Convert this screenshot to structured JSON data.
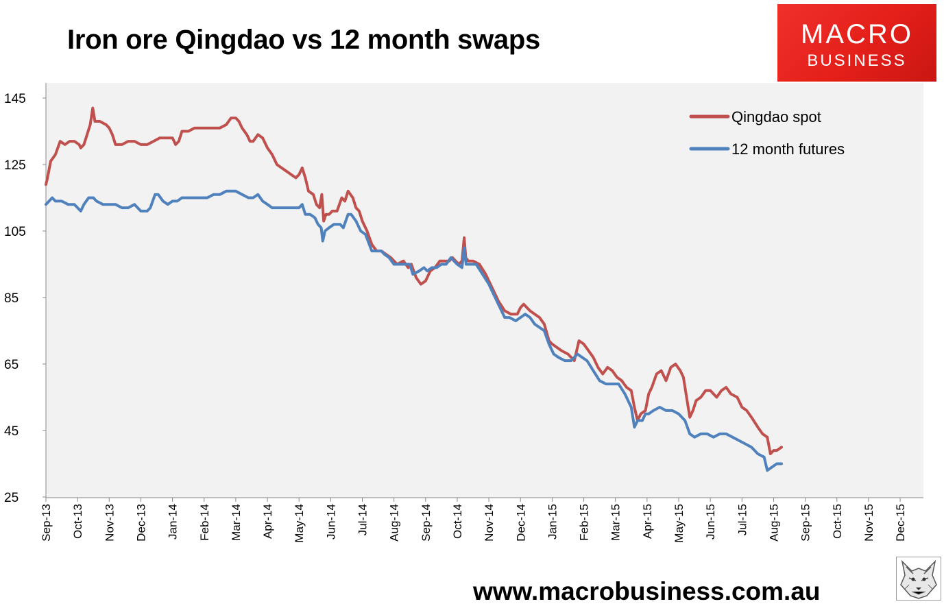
{
  "title": "Iron ore Qingdao vs 12 month swaps",
  "logo": {
    "line1": "MACRO",
    "line2": "BUSINESS",
    "color": "#e41f1a"
  },
  "website": "www.macrobusiness.com.au",
  "colors": {
    "plot_bg": "#f2f2f2",
    "spot": "#c0504d",
    "futures": "#4f81bd"
  },
  "chart_data": {
    "type": "line",
    "title": "Iron ore Qingdao vs 12 month swaps",
    "xlabel": "",
    "ylabel": "",
    "ylim": [
      25,
      150
    ],
    "yticks": [
      25,
      45,
      65,
      85,
      105,
      125,
      145
    ],
    "categories": [
      "Sep-13",
      "Oct-13",
      "Nov-13",
      "Dec-13",
      "Jan-14",
      "Feb-14",
      "Mar-14",
      "Apr-14",
      "May-14",
      "Jun-14",
      "Jul-14",
      "Aug-14",
      "Sep-14",
      "Oct-14",
      "Nov-14",
      "Dec-14",
      "Jan-15",
      "Feb-15",
      "Mar-15",
      "Apr-15",
      "May-15",
      "Jun-15",
      "Jul-15",
      "Aug-15",
      "Sep-15",
      "Oct-15",
      "Nov-15",
      "Dec-15"
    ],
    "grid": false,
    "legend": "top-right",
    "x_unit": "month index (0 = Sep-13)",
    "series": [
      {
        "name": "Qingdao spot",
        "color": "#c0504d",
        "points": [
          [
            0,
            119
          ],
          [
            0.05,
            121
          ],
          [
            0.15,
            126
          ],
          [
            0.3,
            128
          ],
          [
            0.45,
            132
          ],
          [
            0.6,
            131
          ],
          [
            0.75,
            132
          ],
          [
            0.9,
            132
          ],
          [
            1.05,
            131
          ],
          [
            1.1,
            130
          ],
          [
            1.2,
            131
          ],
          [
            1.3,
            134
          ],
          [
            1.4,
            137
          ],
          [
            1.48,
            142
          ],
          [
            1.55,
            138
          ],
          [
            1.7,
            138
          ],
          [
            1.9,
            137
          ],
          [
            2.0,
            136
          ],
          [
            2.1,
            134
          ],
          [
            2.2,
            131
          ],
          [
            2.4,
            131
          ],
          [
            2.6,
            132
          ],
          [
            2.8,
            132
          ],
          [
            3.0,
            131
          ],
          [
            3.2,
            131
          ],
          [
            3.4,
            132
          ],
          [
            3.6,
            133
          ],
          [
            3.8,
            133
          ],
          [
            4.0,
            133
          ],
          [
            4.1,
            131
          ],
          [
            4.2,
            132
          ],
          [
            4.3,
            135
          ],
          [
            4.5,
            135
          ],
          [
            4.7,
            136
          ],
          [
            4.9,
            136
          ],
          [
            5.1,
            136
          ],
          [
            5.3,
            136
          ],
          [
            5.5,
            136
          ],
          [
            5.7,
            137
          ],
          [
            5.85,
            139
          ],
          [
            6.0,
            139
          ],
          [
            6.1,
            138
          ],
          [
            6.2,
            136
          ],
          [
            6.35,
            134
          ],
          [
            6.45,
            132
          ],
          [
            6.55,
            132
          ],
          [
            6.7,
            134
          ],
          [
            6.85,
            133
          ],
          [
            7.0,
            130
          ],
          [
            7.15,
            128
          ],
          [
            7.3,
            125
          ],
          [
            7.45,
            124
          ],
          [
            7.6,
            123
          ],
          [
            7.75,
            122
          ],
          [
            7.9,
            121
          ],
          [
            8.0,
            122
          ],
          [
            8.1,
            124
          ],
          [
            8.2,
            121
          ],
          [
            8.3,
            117
          ],
          [
            8.45,
            116
          ],
          [
            8.55,
            113
          ],
          [
            8.65,
            112
          ],
          [
            8.72,
            116
          ],
          [
            8.78,
            108
          ],
          [
            8.85,
            110
          ],
          [
            8.95,
            110
          ],
          [
            9.05,
            111
          ],
          [
            9.2,
            111
          ],
          [
            9.35,
            115
          ],
          [
            9.45,
            114
          ],
          [
            9.55,
            117
          ],
          [
            9.7,
            115
          ],
          [
            9.8,
            112
          ],
          [
            9.9,
            111
          ],
          [
            10.0,
            108
          ],
          [
            10.15,
            105
          ],
          [
            10.3,
            101
          ],
          [
            10.45,
            99
          ],
          [
            10.6,
            99
          ],
          [
            10.75,
            98
          ],
          [
            10.9,
            97
          ],
          [
            11.1,
            95
          ],
          [
            11.3,
            96
          ],
          [
            11.45,
            94
          ],
          [
            11.55,
            95
          ],
          [
            11.7,
            91
          ],
          [
            11.85,
            89
          ],
          [
            12.0,
            90
          ],
          [
            12.15,
            93
          ],
          [
            12.3,
            94
          ],
          [
            12.45,
            96
          ],
          [
            12.6,
            96
          ],
          [
            12.75,
            96
          ],
          [
            12.85,
            97
          ],
          [
            12.95,
            96
          ],
          [
            13.05,
            95
          ],
          [
            13.15,
            96
          ],
          [
            13.22,
            103
          ],
          [
            13.27,
            97
          ],
          [
            13.35,
            96
          ],
          [
            13.5,
            96
          ],
          [
            13.7,
            95
          ],
          [
            13.9,
            92
          ],
          [
            14.1,
            88
          ],
          [
            14.3,
            84
          ],
          [
            14.5,
            81
          ],
          [
            14.7,
            80
          ],
          [
            14.9,
            80
          ],
          [
            15.0,
            82
          ],
          [
            15.1,
            83
          ],
          [
            15.2,
            82
          ],
          [
            15.3,
            81
          ],
          [
            15.45,
            80
          ],
          [
            15.6,
            79
          ],
          [
            15.75,
            77
          ],
          [
            15.9,
            72
          ],
          [
            16.0,
            71
          ],
          [
            16.15,
            70
          ],
          [
            16.3,
            69
          ],
          [
            16.5,
            68
          ],
          [
            16.7,
            66
          ],
          [
            16.85,
            72
          ],
          [
            17.0,
            71
          ],
          [
            17.15,
            69
          ],
          [
            17.3,
            67
          ],
          [
            17.45,
            64
          ],
          [
            17.6,
            62
          ],
          [
            17.75,
            64
          ],
          [
            17.9,
            63
          ],
          [
            18.05,
            61
          ],
          [
            18.2,
            60
          ],
          [
            18.35,
            58
          ],
          [
            18.5,
            57
          ],
          [
            18.6,
            52
          ],
          [
            18.7,
            48
          ],
          [
            18.8,
            50
          ],
          [
            18.95,
            51
          ],
          [
            19.05,
            56
          ],
          [
            19.15,
            58
          ],
          [
            19.3,
            62
          ],
          [
            19.45,
            63
          ],
          [
            19.6,
            60
          ],
          [
            19.75,
            64
          ],
          [
            19.9,
            65
          ],
          [
            20.05,
            63
          ],
          [
            20.15,
            61
          ],
          [
            20.25,
            55
          ],
          [
            20.35,
            49
          ],
          [
            20.45,
            51
          ],
          [
            20.55,
            54
          ],
          [
            20.7,
            55
          ],
          [
            20.85,
            57
          ],
          [
            21.0,
            57
          ],
          [
            21.2,
            55
          ],
          [
            21.35,
            57
          ],
          [
            21.5,
            58
          ],
          [
            21.65,
            56
          ],
          [
            21.85,
            55
          ],
          [
            22.0,
            52
          ],
          [
            22.15,
            51
          ],
          [
            22.3,
            49
          ],
          [
            22.5,
            46
          ],
          [
            22.65,
            44
          ],
          [
            22.8,
            43
          ],
          [
            22.9,
            38
          ],
          [
            23.0,
            39
          ],
          [
            23.1,
            39
          ],
          [
            23.25,
            40
          ]
        ]
      },
      {
        "name": "12 month futures",
        "color": "#4f81bd",
        "points": [
          [
            0,
            113
          ],
          [
            0.1,
            114
          ],
          [
            0.2,
            115
          ],
          [
            0.3,
            114
          ],
          [
            0.5,
            114
          ],
          [
            0.7,
            113
          ],
          [
            0.9,
            113
          ],
          [
            1.0,
            112
          ],
          [
            1.1,
            111
          ],
          [
            1.2,
            113
          ],
          [
            1.35,
            115
          ],
          [
            1.5,
            115
          ],
          [
            1.6,
            114
          ],
          [
            1.8,
            113
          ],
          [
            2.0,
            113
          ],
          [
            2.2,
            113
          ],
          [
            2.4,
            112
          ],
          [
            2.6,
            112
          ],
          [
            2.8,
            113
          ],
          [
            3.0,
            111
          ],
          [
            3.2,
            111
          ],
          [
            3.3,
            112
          ],
          [
            3.45,
            116
          ],
          [
            3.55,
            116
          ],
          [
            3.7,
            114
          ],
          [
            3.85,
            113
          ],
          [
            4.0,
            114
          ],
          [
            4.15,
            114
          ],
          [
            4.3,
            115
          ],
          [
            4.5,
            115
          ],
          [
            4.7,
            115
          ],
          [
            4.9,
            115
          ],
          [
            5.1,
            115
          ],
          [
            5.3,
            116
          ],
          [
            5.5,
            116
          ],
          [
            5.7,
            117
          ],
          [
            5.85,
            117
          ],
          [
            6.0,
            117
          ],
          [
            6.2,
            116
          ],
          [
            6.4,
            115
          ],
          [
            6.55,
            115
          ],
          [
            6.7,
            116
          ],
          [
            6.85,
            114
          ],
          [
            7.0,
            113
          ],
          [
            7.15,
            112
          ],
          [
            7.3,
            112
          ],
          [
            7.5,
            112
          ],
          [
            7.65,
            112
          ],
          [
            7.85,
            112
          ],
          [
            8.0,
            112
          ],
          [
            8.1,
            113
          ],
          [
            8.2,
            110
          ],
          [
            8.35,
            110
          ],
          [
            8.5,
            109
          ],
          [
            8.6,
            107
          ],
          [
            8.7,
            106
          ],
          [
            8.75,
            102
          ],
          [
            8.82,
            105
          ],
          [
            8.95,
            106
          ],
          [
            9.1,
            107
          ],
          [
            9.3,
            107
          ],
          [
            9.4,
            106
          ],
          [
            9.55,
            110
          ],
          [
            9.65,
            110
          ],
          [
            9.8,
            108
          ],
          [
            9.95,
            105
          ],
          [
            10.1,
            104
          ],
          [
            10.3,
            99
          ],
          [
            10.45,
            99
          ],
          [
            10.6,
            99
          ],
          [
            10.7,
            98
          ],
          [
            10.85,
            97
          ],
          [
            11.0,
            95
          ],
          [
            11.2,
            95
          ],
          [
            11.35,
            95
          ],
          [
            11.5,
            95
          ],
          [
            11.6,
            92
          ],
          [
            11.8,
            93
          ],
          [
            11.95,
            94
          ],
          [
            12.05,
            93
          ],
          [
            12.2,
            94
          ],
          [
            12.35,
            94
          ],
          [
            12.5,
            95
          ],
          [
            12.65,
            95
          ],
          [
            12.8,
            97
          ],
          [
            12.9,
            96
          ],
          [
            13.0,
            95
          ],
          [
            13.15,
            94
          ],
          [
            13.22,
            100
          ],
          [
            13.28,
            95
          ],
          [
            13.4,
            95
          ],
          [
            13.6,
            95
          ],
          [
            13.8,
            92
          ],
          [
            14.0,
            89
          ],
          [
            14.2,
            85
          ],
          [
            14.35,
            82
          ],
          [
            14.5,
            79
          ],
          [
            14.65,
            79
          ],
          [
            14.85,
            78
          ],
          [
            15.0,
            79
          ],
          [
            15.15,
            80
          ],
          [
            15.3,
            79
          ],
          [
            15.45,
            77
          ],
          [
            15.6,
            76
          ],
          [
            15.75,
            75
          ],
          [
            15.9,
            71
          ],
          [
            16.05,
            68
          ],
          [
            16.2,
            67
          ],
          [
            16.4,
            66
          ],
          [
            16.6,
            66
          ],
          [
            16.8,
            68
          ],
          [
            16.95,
            67
          ],
          [
            17.1,
            66
          ],
          [
            17.3,
            63
          ],
          [
            17.5,
            60
          ],
          [
            17.7,
            59
          ],
          [
            17.9,
            59
          ],
          [
            18.1,
            59
          ],
          [
            18.3,
            56
          ],
          [
            18.5,
            52
          ],
          [
            18.6,
            46
          ],
          [
            18.7,
            48
          ],
          [
            18.85,
            48
          ],
          [
            18.95,
            50
          ],
          [
            19.05,
            50
          ],
          [
            19.2,
            51
          ],
          [
            19.4,
            52
          ],
          [
            19.6,
            51
          ],
          [
            19.8,
            51
          ],
          [
            20.0,
            50
          ],
          [
            20.2,
            48
          ],
          [
            20.35,
            44
          ],
          [
            20.5,
            43
          ],
          [
            20.7,
            44
          ],
          [
            20.9,
            44
          ],
          [
            21.1,
            43
          ],
          [
            21.3,
            44
          ],
          [
            21.5,
            44
          ],
          [
            21.7,
            43
          ],
          [
            21.9,
            42
          ],
          [
            22.1,
            41
          ],
          [
            22.3,
            40
          ],
          [
            22.5,
            38
          ],
          [
            22.7,
            37
          ],
          [
            22.8,
            33
          ],
          [
            22.95,
            34
          ],
          [
            23.1,
            35
          ],
          [
            23.25,
            35
          ]
        ]
      }
    ]
  }
}
